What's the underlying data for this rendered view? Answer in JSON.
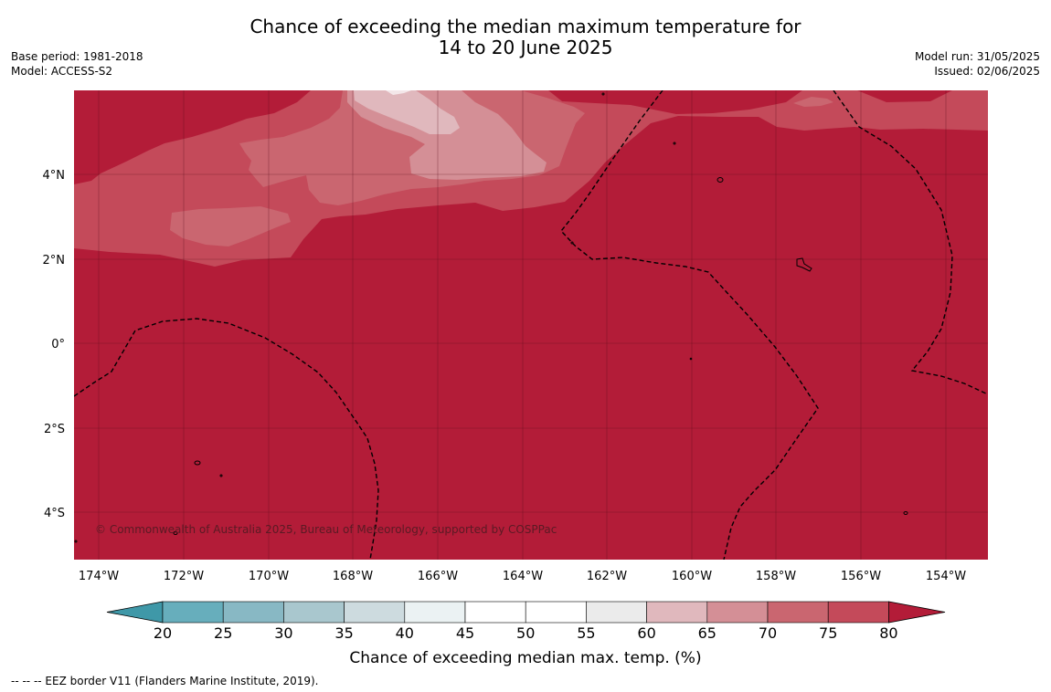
{
  "title": {
    "line1": "Chance of exceeding the median maximum temperature for",
    "line2": "14 to 20 June 2025"
  },
  "meta_left": {
    "base_period": "Base period: 1981-2018",
    "model": "Model: ACCESS-S2"
  },
  "meta_right": {
    "model_run": "Model run: 31/05/2025",
    "issued": "Issued: 02/06/2025"
  },
  "map": {
    "copyright": "© Commonwealth of Australia 2025, Bureau of Meteorology, supported by COSPPac",
    "x_ticks": [
      "174°W",
      "172°W",
      "170°W",
      "168°W",
      "166°W",
      "164°W",
      "162°W",
      "160°W",
      "158°W",
      "156°W",
      "154°W"
    ],
    "y_ticks": [
      "4°N",
      "2°N",
      "0°",
      "2°S",
      "4°S"
    ],
    "colors": {
      "c80": "#b31c38",
      "c75": "#c44a5a",
      "c70": "#ca6670",
      "c65": "#d48f96",
      "c60": "#e0b8bd"
    }
  },
  "colorbar": {
    "ticks": [
      "20",
      "25",
      "30",
      "35",
      "40",
      "45",
      "50",
      "55",
      "60",
      "65",
      "70",
      "75",
      "80"
    ],
    "colors": [
      "#3f98a8",
      "#67aebc",
      "#88b8c4",
      "#a9c7ce",
      "#cddbdf",
      "#ebf2f3",
      "#ffffff",
      "#ffffff",
      "#ebebeb",
      "#e0b8bd",
      "#d48f96",
      "#ca6670",
      "#c44a5a",
      "#b31c38"
    ],
    "label": "Chance of exceeding median max. temp. (%)"
  },
  "footnote": "-- -- -- EEZ border V11 (Flanders Marine Institute, 2019)."
}
